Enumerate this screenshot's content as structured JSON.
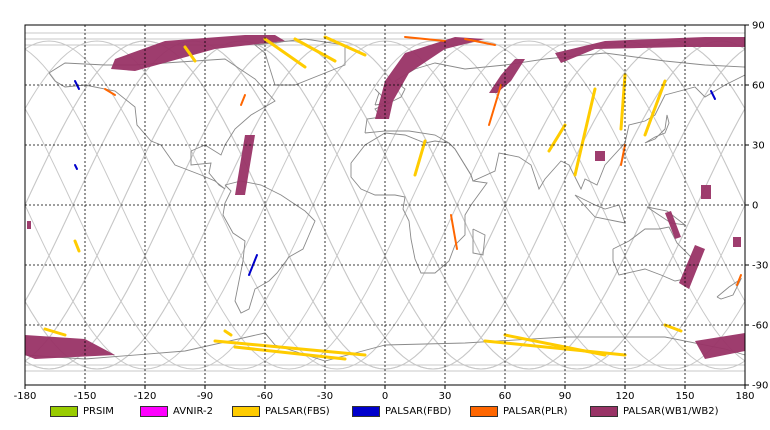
{
  "map": {
    "lon_ticks": [
      "-180",
      "-150",
      "-120",
      "-90",
      "-60",
      "-30",
      "0",
      "30",
      "60",
      "90",
      "120",
      "150",
      "180"
    ],
    "lat_ticks": [
      "90",
      "60",
      "30",
      "0",
      "-30",
      "-60",
      "-90"
    ],
    "colors": {
      "orbit": "#c8c8c8",
      "coast": "#8a8a8a",
      "grid": "#000000",
      "prism": "#99cc00",
      "avnir2": "#ff00ff",
      "fbs": "#ffcc00",
      "fbd": "#0000cc",
      "plr": "#ff6600",
      "wb": "#993366"
    }
  },
  "legend": [
    {
      "label": "PRSIM",
      "color": "#99cc00"
    },
    {
      "label": "AVNIR-2",
      "color": "#ff00ff"
    },
    {
      "label": "PALSAR(FBS)",
      "color": "#ffcc00"
    },
    {
      "label": "PALSAR(FBD)",
      "color": "#0000cc"
    },
    {
      "label": "PALSAR(PLR)",
      "color": "#ff6600"
    },
    {
      "label": "PALSAR(WB1/WB2)",
      "color": "#993366"
    }
  ],
  "chart_data": {
    "type": "map",
    "projection": "equirectangular",
    "xlim": [
      -180,
      180
    ],
    "ylim": [
      -90,
      90
    ],
    "grid": true,
    "observations": [
      {
        "sensor": "wb",
        "type": "band",
        "pts": [
          [
            -135,
            73
          ],
          [
            -110,
            82
          ],
          [
            -70,
            85
          ],
          [
            -55,
            85
          ],
          [
            -50,
            82
          ],
          [
            -85,
            78
          ],
          [
            -125,
            67
          ],
          [
            -137,
            68
          ]
        ]
      },
      {
        "sensor": "wb",
        "type": "band",
        "pts": [
          [
            -5,
            43
          ],
          [
            0,
            62
          ],
          [
            10,
            76
          ],
          [
            35,
            84
          ],
          [
            50,
            83
          ],
          [
            30,
            78
          ],
          [
            12,
            66
          ],
          [
            4,
            52
          ],
          [
            2,
            43
          ]
        ]
      },
      {
        "sensor": "wb",
        "type": "band",
        "pts": [
          [
            52,
            56
          ],
          [
            58,
            65
          ],
          [
            65,
            73
          ],
          [
            70,
            73
          ],
          [
            63,
            62
          ],
          [
            56,
            56
          ]
        ]
      },
      {
        "sensor": "wb",
        "type": "band",
        "pts": [
          [
            85,
            76
          ],
          [
            110,
            82
          ],
          [
            160,
            84
          ],
          [
            180,
            84
          ],
          [
            180,
            79
          ],
          [
            150,
            79
          ],
          [
            105,
            78
          ],
          [
            88,
            71
          ]
        ]
      },
      {
        "sensor": "wb",
        "type": "band",
        "pts": [
          [
            -75,
            5
          ],
          [
            -70,
            35
          ],
          [
            -65,
            35
          ],
          [
            -70,
            5
          ]
        ]
      },
      {
        "sensor": "wb",
        "type": "band",
        "pts": [
          [
            147,
            -39
          ],
          [
            155,
            -20
          ],
          [
            160,
            -22
          ],
          [
            152,
            -42
          ]
        ]
      },
      {
        "sensor": "wb",
        "type": "band",
        "pts": [
          [
            -180,
            -65
          ],
          [
            -150,
            -67
          ],
          [
            -135,
            -75
          ],
          [
            -175,
            -77
          ],
          [
            -180,
            -75
          ]
        ]
      },
      {
        "sensor": "wb",
        "type": "band",
        "pts": [
          [
            155,
            -68
          ],
          [
            180,
            -64
          ],
          [
            180,
            -73
          ],
          [
            160,
            -77
          ]
        ]
      },
      {
        "sensor": "wb",
        "type": "band",
        "pts": [
          [
            140,
            -4
          ],
          [
            145,
            -17
          ],
          [
            148,
            -16
          ],
          [
            143,
            -3
          ]
        ]
      },
      {
        "sensor": "wb",
        "type": "band",
        "pts": [
          [
            105,
            27
          ],
          [
            110,
            27
          ],
          [
            110,
            22
          ],
          [
            105,
            22
          ]
        ]
      },
      {
        "sensor": "wb",
        "type": "band",
        "pts": [
          [
            158,
            10
          ],
          [
            163,
            10
          ],
          [
            163,
            3
          ],
          [
            158,
            3
          ]
        ]
      },
      {
        "sensor": "wb",
        "type": "band",
        "pts": [
          [
            174,
            -16
          ],
          [
            178,
            -16
          ],
          [
            178,
            -21
          ],
          [
            174,
            -21
          ]
        ]
      },
      {
        "sensor": "wb",
        "type": "band",
        "pts": [
          [
            -179,
            -8
          ],
          [
            -177,
            -8
          ],
          [
            -177,
            -12
          ],
          [
            -179,
            -12
          ]
        ]
      },
      {
        "sensor": "fbs",
        "type": "line",
        "pts": [
          [
            -75,
            -71
          ],
          [
            -20,
            -77
          ]
        ]
      },
      {
        "sensor": "fbs",
        "type": "line",
        "pts": [
          [
            -85,
            -68
          ],
          [
            -10,
            -75
          ]
        ]
      },
      {
        "sensor": "fbs",
        "type": "line",
        "pts": [
          [
            50,
            -68
          ],
          [
            120,
            -75
          ]
        ]
      },
      {
        "sensor": "fbs",
        "type": "line",
        "pts": [
          [
            60,
            -65
          ],
          [
            110,
            -75
          ]
        ]
      },
      {
        "sensor": "fbs",
        "type": "line",
        "pts": [
          [
            -60,
            83
          ],
          [
            -40,
            69
          ]
        ]
      },
      {
        "sensor": "fbs",
        "type": "line",
        "pts": [
          [
            -45,
            83
          ],
          [
            -25,
            72
          ]
        ]
      },
      {
        "sensor": "fbs",
        "type": "line",
        "pts": [
          [
            -30,
            84
          ],
          [
            -10,
            75
          ]
        ]
      },
      {
        "sensor": "fbs",
        "type": "line",
        "pts": [
          [
            -100,
            79
          ],
          [
            -95,
            72
          ]
        ]
      },
      {
        "sensor": "fbs",
        "type": "line",
        "pts": [
          [
            90,
            40
          ],
          [
            82,
            27
          ]
        ]
      },
      {
        "sensor": "fbs",
        "type": "line",
        "pts": [
          [
            105,
            58
          ],
          [
            95,
            15
          ]
        ]
      },
      {
        "sensor": "fbs",
        "type": "line",
        "pts": [
          [
            140,
            62
          ],
          [
            130,
            35
          ]
        ]
      },
      {
        "sensor": "fbs",
        "type": "line",
        "pts": [
          [
            20,
            32
          ],
          [
            15,
            15
          ]
        ]
      },
      {
        "sensor": "fbs",
        "type": "line",
        "pts": [
          [
            120,
            65
          ],
          [
            118,
            38
          ]
        ]
      },
      {
        "sensor": "fbs",
        "type": "line",
        "pts": [
          [
            -155,
            -18
          ],
          [
            -153,
            -23
          ]
        ]
      },
      {
        "sensor": "fbs",
        "type": "line",
        "pts": [
          [
            -80,
            -63
          ],
          [
            -77,
            -65
          ]
        ]
      },
      {
        "sensor": "fbs",
        "type": "line",
        "pts": [
          [
            140,
            -60
          ],
          [
            148,
            -63
          ]
        ]
      },
      {
        "sensor": "fbs",
        "type": "line",
        "pts": [
          [
            -170,
            -62
          ],
          [
            -160,
            -65
          ]
        ]
      },
      {
        "sensor": "fbd",
        "type": "line",
        "pts": [
          [
            -155,
            62
          ],
          [
            -153,
            58
          ]
        ]
      },
      {
        "sensor": "fbd",
        "type": "line",
        "pts": [
          [
            -68,
            -35
          ],
          [
            -64,
            -25
          ]
        ]
      },
      {
        "sensor": "fbd",
        "type": "line",
        "pts": [
          [
            -155,
            20
          ],
          [
            -154,
            18
          ]
        ]
      },
      {
        "sensor": "fbd",
        "type": "line",
        "pts": [
          [
            163,
            57
          ],
          [
            165,
            53
          ]
        ]
      },
      {
        "sensor": "plr",
        "type": "line",
        "pts": [
          [
            40,
            83
          ],
          [
            55,
            80
          ]
        ]
      },
      {
        "sensor": "plr",
        "type": "line",
        "pts": [
          [
            10,
            84
          ],
          [
            30,
            82
          ]
        ]
      },
      {
        "sensor": "plr",
        "type": "line",
        "pts": [
          [
            -140,
            58
          ],
          [
            -135,
            55
          ]
        ]
      },
      {
        "sensor": "plr",
        "type": "line",
        "pts": [
          [
            33,
            -5
          ],
          [
            36,
            -22
          ]
        ]
      },
      {
        "sensor": "plr",
        "type": "line",
        "pts": [
          [
            58,
            60
          ],
          [
            52,
            40
          ]
        ]
      },
      {
        "sensor": "plr",
        "type": "line",
        "pts": [
          [
            -70,
            55
          ],
          [
            -72,
            50
          ]
        ]
      },
      {
        "sensor": "plr",
        "type": "line",
        "pts": [
          [
            178,
            -35
          ],
          [
            176,
            -40
          ]
        ]
      },
      {
        "sensor": "plr",
        "type": "line",
        "pts": [
          [
            120,
            30
          ],
          [
            118,
            20
          ]
        ]
      }
    ]
  }
}
